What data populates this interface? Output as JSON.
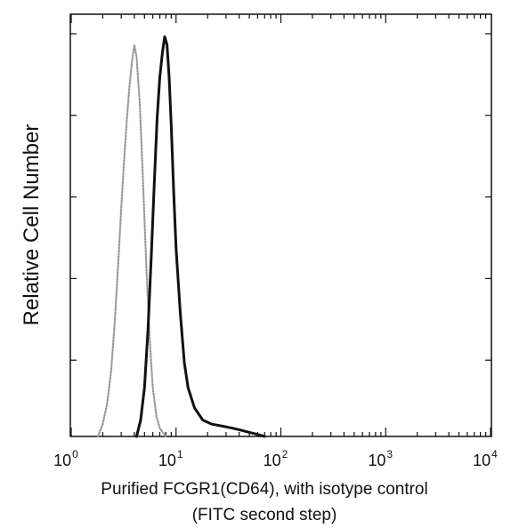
{
  "chart_data": {
    "type": "line",
    "title": "",
    "xlabel": "Purified FCGR1(CD64), with isotype control",
    "xlabel_line2": "(FITC second step)",
    "ylabel": "Relative Cell Number",
    "x_scale": "log",
    "xlim": [
      1,
      10000
    ],
    "ylim": [
      0,
      100
    ],
    "grid": false,
    "legend": "none",
    "x_ticks": [
      {
        "base": "10",
        "exp": "0",
        "value": 1
      },
      {
        "base": "10",
        "exp": "1",
        "value": 10
      },
      {
        "base": "10",
        "exp": "2",
        "value": 100
      },
      {
        "base": "10",
        "exp": "3",
        "value": 1000
      },
      {
        "base": "10",
        "exp": "4",
        "value": 10000
      }
    ],
    "series": [
      {
        "style": "dotted",
        "color": "#9a9a9a",
        "x": [
          1.8,
          2.0,
          2.2,
          2.4,
          2.6,
          2.8,
          3.0,
          3.2,
          3.4,
          3.6,
          3.8,
          4.0,
          4.2,
          4.5,
          4.8,
          5.2,
          5.6,
          6.0,
          6.5,
          7.0,
          7.5,
          8.0
        ],
        "y": [
          0,
          3,
          8,
          16,
          28,
          42,
          56,
          68,
          78,
          86,
          92,
          96,
          93,
          82,
          65,
          42,
          24,
          12,
          5,
          2,
          1,
          0
        ]
      },
      {
        "style": "solid",
        "color": "#111111",
        "x": [
          4.2,
          4.6,
          5.0,
          5.4,
          5.8,
          6.2,
          6.6,
          7.0,
          7.4,
          7.8,
          8.2,
          8.6,
          9.0,
          9.5,
          10.0,
          11.0,
          12.0,
          13.0,
          15.0,
          18.0,
          22.0,
          28.0,
          35.0,
          42.0,
          50.0,
          60.0,
          70.0
        ],
        "y": [
          0,
          4,
          12,
          26,
          44,
          62,
          78,
          88,
          94,
          98,
          96,
          88,
          76,
          60,
          46,
          30,
          18,
          12,
          7,
          4,
          3,
          2.5,
          2,
          1.5,
          1,
          0.5,
          0
        ]
      }
    ]
  }
}
